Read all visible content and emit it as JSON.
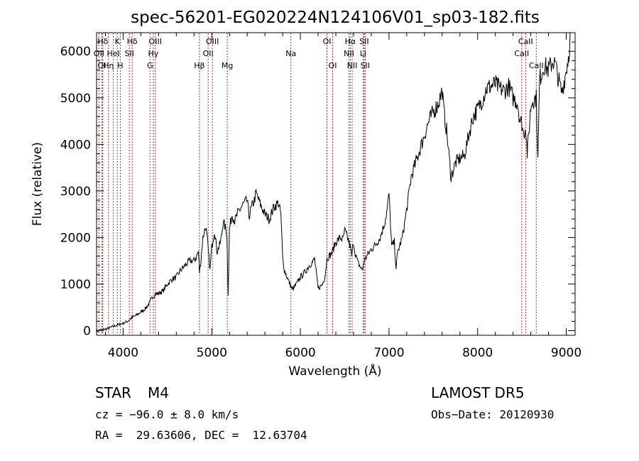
{
  "chart_data": {
    "type": "line",
    "title": "spec-56201-EG020224N124106V01_sp03-182.fits",
    "xlabel": "Wavelength (Å)",
    "ylabel": "Flux (relative)",
    "xlim": [
      3700,
      9100
    ],
    "ylim": [
      -100,
      6400
    ],
    "x_ticks": [
      4000,
      5000,
      6000,
      7000,
      8000,
      9000
    ],
    "y_ticks": [
      0,
      1000,
      2000,
      3000,
      4000,
      5000,
      6000
    ],
    "x_tick_labels": [
      "4000",
      "5000",
      "6000",
      "7000",
      "8000",
      "9000"
    ],
    "y_tick_labels": [
      "0",
      "1000",
      "2000",
      "3000",
      "4000",
      "5000",
      "6000"
    ],
    "line_color": "#000000",
    "marker_color": "#cc2222",
    "series": [
      {
        "x": [
          3700,
          3750,
          3800,
          3850,
          3900,
          3950,
          4000,
          4050,
          4100,
          4150,
          4200,
          4250,
          4300,
          4330,
          4360,
          4400,
          4450,
          4500,
          4550,
          4600,
          4650,
          4700,
          4750,
          4800,
          4830,
          4850,
          4861,
          4880,
          4900,
          4930,
          4950,
          4980,
          5000,
          5030,
          5060,
          5100,
          5130,
          5170,
          5185,
          5200,
          5230,
          5260,
          5300,
          5350,
          5400,
          5420,
          5450,
          5480,
          5500,
          5550,
          5600,
          5650,
          5700,
          5750,
          5780,
          5800,
          5820,
          5850,
          5870,
          5893,
          5910,
          5950,
          6000,
          6050,
          6100,
          6150,
          6160,
          6200,
          6250,
          6280,
          6300,
          6350,
          6400,
          6450,
          6480,
          6500,
          6540,
          6563,
          6580,
          6600,
          6620,
          6650,
          6700,
          6720,
          6750,
          6800,
          6850,
          6900,
          6950,
          6980,
          7000,
          7030,
          7060,
          7080,
          7100,
          7150,
          7200,
          7250,
          7300,
          7350,
          7400,
          7450,
          7500,
          7550,
          7600,
          7620,
          7650,
          7700,
          7750,
          7800,
          7850,
          7900,
          7950,
          8000,
          8050,
          8100,
          8150,
          8200,
          8250,
          8300,
          8350,
          8400,
          8450,
          8480,
          8500,
          8520,
          8542,
          8560,
          8600,
          8620,
          8662,
          8680,
          8700,
          8750,
          8800,
          8850,
          8880,
          8900,
          8950,
          9000,
          9030,
          9050
        ],
        "y": [
          -20,
          20,
          30,
          60,
          100,
          130,
          160,
          200,
          280,
          330,
          400,
          470,
          600,
          720,
          780,
          800,
          850,
          1000,
          1100,
          1150,
          1300,
          1400,
          1500,
          1500,
          1600,
          1700,
          1250,
          1550,
          2000,
          2250,
          1950,
          1300,
          1800,
          2150,
          1700,
          1900,
          2350,
          2100,
          800,
          2200,
          2500,
          2350,
          2550,
          2700,
          2800,
          2450,
          2650,
          2800,
          2950,
          2700,
          2500,
          2400,
          2650,
          2750,
          2500,
          1550,
          1300,
          1150,
          1050,
          950,
          880,
          980,
          1150,
          1250,
          1400,
          1500,
          1550,
          900,
          1000,
          1200,
          1550,
          1650,
          1900,
          2000,
          1950,
          2150,
          1950,
          1800,
          1600,
          1900,
          1650,
          1450,
          1300,
          1500,
          1600,
          1750,
          1850,
          2000,
          2300,
          2600,
          2950,
          1800,
          1900,
          1350,
          1700,
          2000,
          2600,
          3300,
          3600,
          3900,
          4200,
          4500,
          4700,
          4850,
          5150,
          4700,
          4300,
          3300,
          3600,
          3700,
          3750,
          4200,
          4600,
          4750,
          4950,
          5200,
          5250,
          5300,
          5200,
          5150,
          5250,
          5000,
          4900,
          4500,
          4450,
          4200,
          4400,
          3800,
          4800,
          4950,
          5000,
          3650,
          5400,
          5700,
          5600,
          5800,
          5700,
          5500,
          5100,
          5600,
          5950,
          6500
        ]
      }
    ],
    "lines": [
      {
        "label": "Hδ",
        "x": 3770,
        "row": 0
      },
      {
        "label": "K",
        "x": 3934,
        "row": 0
      },
      {
        "label": "Hδ",
        "x": 4102,
        "row": 0
      },
      {
        "label": "OIII",
        "x": 4363,
        "row": 0
      },
      {
        "label": "OIII",
        "x": 5007,
        "row": 0
      },
      {
        "label": "OI",
        "x": 6300,
        "row": 0
      },
      {
        "label": "Hα",
        "x": 6563,
        "row": 0
      },
      {
        "label": "SII",
        "x": 6720,
        "row": 0
      },
      {
        "label": "CaII",
        "x": 8542,
        "row": 0
      },
      {
        "label": "OII",
        "x": 3727,
        "row": 1
      },
      {
        "label": "HeI",
        "x": 3889,
        "row": 1
      },
      {
        "label": "SII",
        "x": 4070,
        "row": 1
      },
      {
        "label": "Hγ",
        "x": 4340,
        "row": 1
      },
      {
        "label": "OII",
        "x": 4959,
        "row": 1
      },
      {
        "label": "Na",
        "x": 5893,
        "row": 1
      },
      {
        "label": "NII",
        "x": 6548,
        "row": 1
      },
      {
        "label": "Li",
        "x": 6708,
        "row": 1
      },
      {
        "label": "CaII",
        "x": 8498,
        "row": 1
      },
      {
        "label": "OI",
        "x": 3760,
        "row": 2
      },
      {
        "label": "Hη",
        "x": 3835,
        "row": 2
      },
      {
        "label": "H",
        "x": 3968,
        "row": 2
      },
      {
        "label": "G",
        "x": 4304,
        "row": 2
      },
      {
        "label": "Hβ",
        "x": 4861,
        "row": 2
      },
      {
        "label": "Mg",
        "x": 5175,
        "row": 2
      },
      {
        "label": "OI",
        "x": 6364,
        "row": 2
      },
      {
        "label": "NII",
        "x": 6584,
        "row": 2
      },
      {
        "label": "SII",
        "x": 6731,
        "row": 2
      },
      {
        "label": "CaII",
        "x": 8662,
        "row": 2
      }
    ],
    "grid": false,
    "legend": "none"
  },
  "info": {
    "object_class": "STAR",
    "subclass": "M4",
    "survey": "LAMOST DR5",
    "cz": "cz = −96.0 ± 8.0 km/s",
    "obs_date": "Obs−Date: 20120930",
    "coords": "RA =  29.63606, DEC =  12.63704"
  }
}
